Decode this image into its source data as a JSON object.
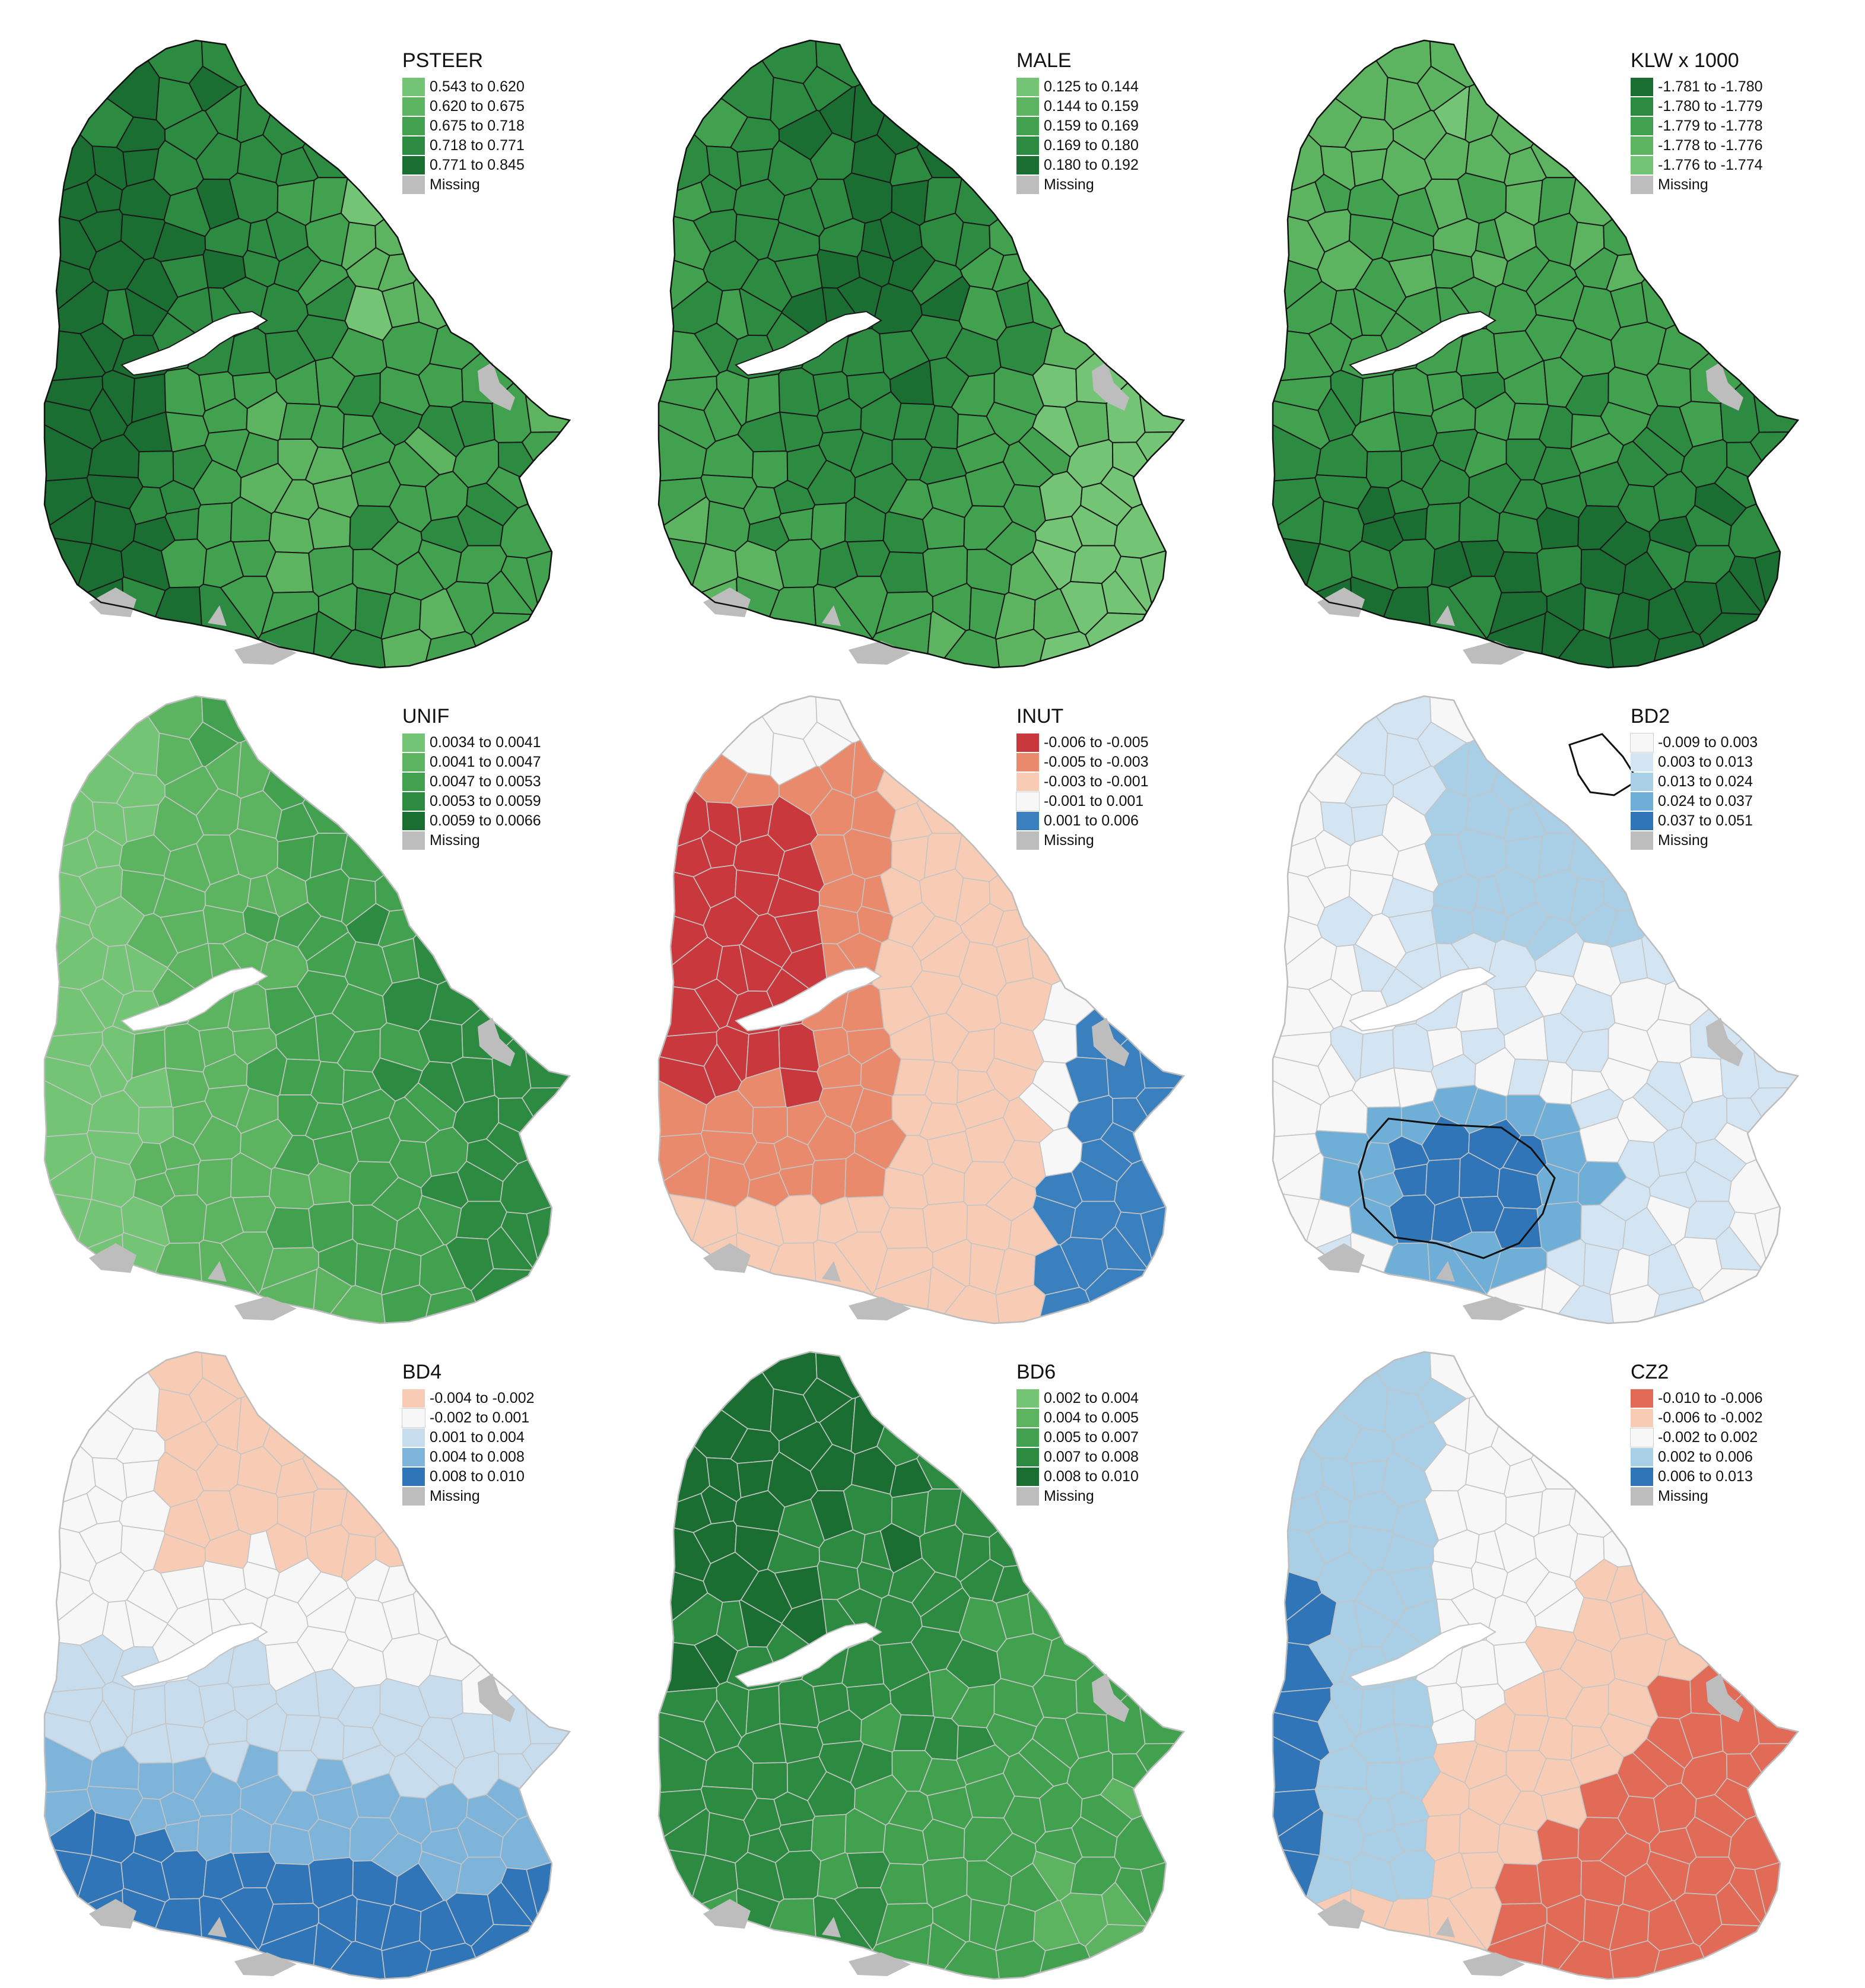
{
  "palettes": {
    "greens_asc": [
      "#74c476",
      "#5cb460",
      "#41a14f",
      "#2c8b41",
      "#1a6e31"
    ],
    "greens_desc": [
      "#1a6e31",
      "#2c8b41",
      "#41a14f",
      "#5cb460",
      "#74c476"
    ],
    "reds_blue": [
      "#c9383c",
      "#ea8a6c",
      "#f8ccb4",
      "#f7f7f7",
      "#3a80bf"
    ],
    "blues": [
      "#f7f7f7",
      "#d3e5f2",
      "#a9cfe6",
      "#6faed6",
      "#2f75b8"
    ],
    "bd4": [
      "#f8ccb4",
      "#f7f7f7",
      "#c7ddee",
      "#7fb4da",
      "#2f75b8"
    ],
    "cz2": [
      "#e16b56",
      "#f8ccb4",
      "#f7f7f7",
      "#a9cfe6",
      "#2f75b8"
    ],
    "missing": "#bdbdbd"
  },
  "panels": [
    {
      "title": "PSTEER",
      "palette": "greens_asc",
      "borders": "dark",
      "legend": [
        "0.543 to 0.620",
        "0.620 to 0.675",
        "0.675 to 0.718",
        "0.718 to 0.771",
        "0.771 to 0.845"
      ],
      "missing_label": "Missing"
    },
    {
      "title": "MALE",
      "palette": "greens_asc",
      "borders": "dark",
      "legend": [
        "0.125 to 0.144",
        "0.144 to 0.159",
        "0.159 to 0.169",
        "0.169 to 0.180",
        "0.180 to 0.192"
      ],
      "missing_label": "Missing"
    },
    {
      "title": "KLW x 1000",
      "palette": "greens_desc",
      "borders": "dark",
      "legend": [
        "-1.781 to -1.780",
        "-1.780 to -1.779",
        "-1.779 to -1.778",
        "-1.778 to -1.776",
        "-1.776 to -1.774"
      ],
      "missing_label": "Missing"
    },
    {
      "title": "UNIF",
      "palette": "greens_asc",
      "borders": "light",
      "legend": [
        "0.0034 to 0.0041",
        "0.0041 to 0.0047",
        "0.0047 to 0.0053",
        "0.0053 to 0.0059",
        "0.0059 to 0.0066"
      ],
      "missing_label": "Missing"
    },
    {
      "title": "INUT",
      "palette": "reds_blue",
      "borders": "light",
      "legend": [
        "-0.006 to -0.005",
        "-0.005 to -0.003",
        "-0.003 to -0.001",
        "-0.001 to 0.001",
        "0.001 to 0.006"
      ],
      "missing_label": "Missing"
    },
    {
      "title": "BD2",
      "palette": "blues",
      "borders": "light",
      "legend": [
        "-0.009 to 0.003",
        "0.003 to 0.013",
        "0.013 to 0.024",
        "0.024 to 0.037",
        "0.037 to 0.051"
      ],
      "missing_label": "Missing"
    },
    {
      "title": "BD4",
      "palette": "bd4",
      "borders": "light",
      "legend": [
        "-0.004 to -0.002",
        "-0.002 to 0.001",
        "0.001 to 0.004",
        "0.004 to 0.008",
        "0.008 to 0.010"
      ],
      "missing_label": "Missing"
    },
    {
      "title": "BD6",
      "palette": "greens_asc",
      "borders": "light",
      "legend": [
        "0.002 to 0.004",
        "0.004 to 0.005",
        "0.005 to 0.007",
        "0.007 to 0.008",
        "0.008 to 0.010"
      ],
      "missing_label": "Missing"
    },
    {
      "title": "CZ2",
      "palette": "cz2",
      "borders": "light",
      "legend": [
        "-0.010 to -0.006",
        "-0.006 to -0.002",
        "-0.002 to 0.002",
        "0.002 to 0.006",
        "0.006 to 0.013"
      ],
      "missing_label": "Missing"
    }
  ]
}
